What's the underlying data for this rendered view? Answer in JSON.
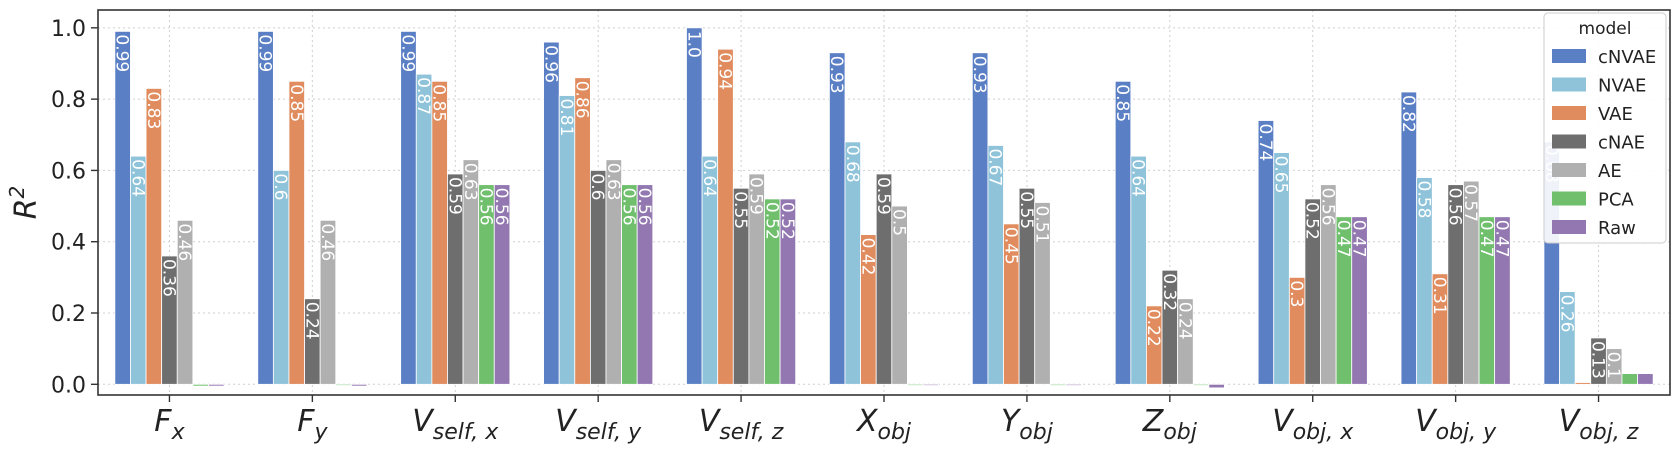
{
  "chart_data": {
    "type": "bar",
    "ylabel": "R^2",
    "ylim": [
      -0.03,
      1.05
    ],
    "yticks": [
      "0.0",
      "0.2",
      "0.4",
      "0.6",
      "0.8",
      "1.0"
    ],
    "categories": [
      {
        "base": "F",
        "sub": "x"
      },
      {
        "base": "F",
        "sub": "y"
      },
      {
        "base": "V",
        "sub": "self, x"
      },
      {
        "base": "V",
        "sub": "self, y"
      },
      {
        "base": "V",
        "sub": "self, z"
      },
      {
        "base": "X",
        "sub": "obj"
      },
      {
        "base": "Y",
        "sub": "obj"
      },
      {
        "base": "Z",
        "sub": "obj"
      },
      {
        "base": "V",
        "sub": "obj, x"
      },
      {
        "base": "V",
        "sub": "obj, y"
      },
      {
        "base": "V",
        "sub": "obj, z"
      }
    ],
    "grid": true,
    "legend": {
      "title": "model",
      "position": "top-right"
    },
    "series": [
      {
        "name": "cNVAE",
        "color": "#5b7fc4",
        "values": [
          0.99,
          0.99,
          0.99,
          0.96,
          1.0,
          0.93,
          0.93,
          0.85,
          0.74,
          0.82,
          0.68
        ],
        "labels": [
          "0.99",
          "0.99",
          "0.99",
          "0.96",
          "1.0",
          "0.93",
          "0.93",
          "0.85",
          "0.74",
          "0.82",
          "0.68"
        ]
      },
      {
        "name": "NVAE",
        "color": "#8fc3da",
        "values": [
          0.64,
          0.6,
          0.87,
          0.81,
          0.64,
          0.68,
          0.67,
          0.64,
          0.65,
          0.58,
          0.26
        ],
        "labels": [
          "0.64",
          "0.6",
          "0.87",
          "0.81",
          "0.64",
          "0.68",
          "0.67",
          "0.64",
          "0.65",
          "0.58",
          "0.26"
        ]
      },
      {
        "name": "VAE",
        "color": "#e08c5e",
        "values": [
          0.83,
          0.85,
          0.85,
          0.86,
          0.94,
          0.42,
          0.45,
          0.22,
          0.3,
          0.31,
          0.005
        ],
        "labels": [
          "0.83",
          "0.85",
          "0.85",
          "0.86",
          "0.94",
          "0.42",
          "0.45",
          "0.22",
          "0.3",
          "0.31",
          ""
        ]
      },
      {
        "name": "cNAE",
        "color": "#6e6e6e",
        "values": [
          0.36,
          0.24,
          0.59,
          0.6,
          0.55,
          0.59,
          0.55,
          0.32,
          0.52,
          0.56,
          0.13
        ],
        "labels": [
          "0.36",
          "0.24",
          "0.59",
          "0.6",
          "0.55",
          "0.59",
          "0.55",
          "0.32",
          "0.52",
          "0.56",
          "0.13"
        ]
      },
      {
        "name": "AE",
        "color": "#b0b0b0",
        "values": [
          0.46,
          0.46,
          0.63,
          0.63,
          0.59,
          0.5,
          0.51,
          0.24,
          0.56,
          0.57,
          0.1
        ],
        "labels": [
          "0.46",
          "0.46",
          "0.63",
          "0.63",
          "0.59",
          "0.5",
          "0.51",
          "0.24",
          "0.56",
          "0.57",
          "0.1"
        ]
      },
      {
        "name": "PCA",
        "color": "#6fbf6d",
        "values": [
          -0.005,
          -0.003,
          0.56,
          0.56,
          0.52,
          -0.001,
          -0.001,
          -0.003,
          0.47,
          0.47,
          0.03
        ],
        "labels": [
          "",
          "",
          "0.56",
          "0.56",
          "0.52",
          "",
          "",
          "",
          "0.47",
          "0.47",
          ""
        ]
      },
      {
        "name": "Raw",
        "color": "#9277b1",
        "values": [
          -0.005,
          -0.005,
          0.56,
          0.56,
          0.52,
          -0.001,
          -0.001,
          -0.01,
          0.47,
          0.47,
          0.03
        ],
        "labels": [
          "",
          "",
          "0.56",
          "0.56",
          "0.52",
          "",
          "",
          "",
          "0.47",
          "0.47",
          ""
        ]
      }
    ]
  }
}
